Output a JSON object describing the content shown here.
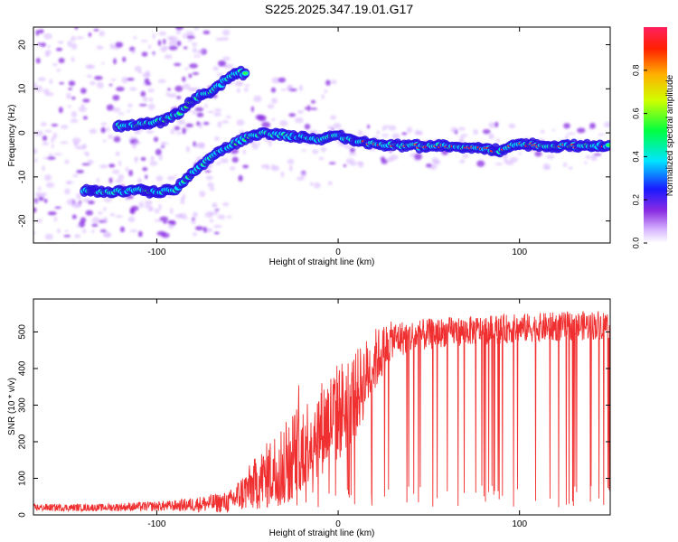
{
  "title": "S225.2025.347.19.01.G17",
  "colors": {
    "snr_line": "#f03030",
    "axes": "#000000",
    "track": "#ff2a2a"
  },
  "chart_data": [
    {
      "type": "heatmap",
      "title": "S225.2025.347.19.01.G17",
      "xlabel": "Height of straight line (km)",
      "ylabel": "Frequency (Hz)",
      "xlim": [
        -168,
        150
      ],
      "ylim": [
        -25,
        24
      ],
      "x_ticks": [
        -100,
        0,
        100
      ],
      "y_ticks": [
        -20,
        -10,
        0,
        10,
        20
      ],
      "colorbar": {
        "label": "Normalized spectral amplitude",
        "range": [
          0,
          1
        ],
        "ticks": [
          "0.0",
          "0.2",
          "0.4",
          "0.6",
          "0.8"
        ]
      },
      "ridges": [
        {
          "name": "upper branch",
          "points": [
            [
              -122,
              1.5
            ],
            [
              -108,
              2
            ],
            [
              -98,
              2.5
            ],
            [
              -88,
              4.5
            ],
            [
              -80,
              7.5
            ],
            [
              -70,
              9.5
            ],
            [
              -60,
              12.5
            ],
            [
              -55,
              14
            ],
            [
              -50,
              13
            ]
          ]
        },
        {
          "name": "lower branch",
          "points": [
            [
              -140,
              -13
            ],
            [
              -125,
              -13.5
            ],
            [
              -110,
              -13
            ],
            [
              -100,
              -13.5
            ],
            [
              -90,
              -13
            ],
            [
              -80,
              -9
            ],
            [
              -70,
              -5.5
            ],
            [
              -60,
              -3
            ],
            [
              -50,
              -1
            ],
            [
              -40,
              0
            ],
            [
              -30,
              -0.5
            ],
            [
              -20,
              -1
            ],
            [
              -10,
              -1.5
            ],
            [
              0,
              -0.5
            ],
            [
              10,
              -2
            ],
            [
              20,
              -2.5
            ],
            [
              40,
              -3
            ],
            [
              60,
              -3
            ],
            [
              80,
              -3.5
            ],
            [
              90,
              -4
            ],
            [
              100,
              -2.5
            ],
            [
              120,
              -3
            ],
            [
              140,
              -3
            ],
            [
              150,
              -3
            ]
          ]
        }
      ]
    },
    {
      "type": "line",
      "xlabel": "Height of straight line (km)",
      "ylabel": "SNR (10 * v/v)",
      "xlim": [
        -168,
        150
      ],
      "ylim": [
        0,
        590
      ],
      "x_ticks": [
        -100,
        0,
        100
      ],
      "y_ticks": [
        0,
        100,
        200,
        300,
        400,
        500
      ],
      "envelope": [
        {
          "x": -168,
          "baseline": 20,
          "spread": 10
        },
        {
          "x": -130,
          "baseline": 20,
          "spread": 10
        },
        {
          "x": -90,
          "baseline": 25,
          "spread": 15
        },
        {
          "x": -60,
          "baseline": 35,
          "spread": 30
        },
        {
          "x": -50,
          "baseline": 70,
          "spread": 60
        },
        {
          "x": -30,
          "baseline": 140,
          "spread": 120
        },
        {
          "x": -20,
          "baseline": 190,
          "spread": 120
        },
        {
          "x": 0,
          "baseline": 280,
          "spread": 140
        },
        {
          "x": 10,
          "baseline": 330,
          "spread": 120
        },
        {
          "x": 20,
          "baseline": 420,
          "spread": 90
        },
        {
          "x": 30,
          "baseline": 480,
          "spread": 50
        },
        {
          "x": 60,
          "baseline": 500,
          "spread": 40
        },
        {
          "x": 100,
          "baseline": 510,
          "spread": 40
        },
        {
          "x": 150,
          "baseline": 520,
          "spread": 40
        }
      ]
    }
  ]
}
